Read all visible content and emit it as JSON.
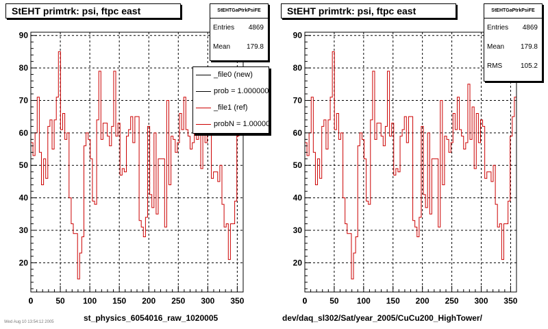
{
  "panels": [
    {
      "title": "StEHT primtrk: psi, ftpc east",
      "stats": {
        "name": "StEHTGaPtrkPsiFE",
        "rows": [
          {
            "label": "Entries",
            "value": "4869"
          },
          {
            "label": "Mean",
            "value": "179.8"
          }
        ]
      },
      "legend": [
        {
          "label": "_file0 (new)",
          "color": "#000000"
        },
        {
          "label": "prob = 1.000000",
          "color": "#000000"
        },
        {
          "label": "_file1 (ref)",
          "color": "#cc0000"
        },
        {
          "label": "probN = 1.000000",
          "color": "#cc0000"
        }
      ],
      "xcaption": "st_physics_6054016_raw_1020005",
      "footnote": "Wed Aug 10 13:54:12 2005"
    },
    {
      "title": "StEHT primtrk: psi, ftpc east",
      "stats": {
        "name": "StEHTGaPtrkPsiFE",
        "rows": [
          {
            "label": "Entries",
            "value": "4869"
          },
          {
            "label": "Mean",
            "value": "179.8"
          },
          {
            "label": "RMS",
            "value": "105.2"
          }
        ]
      },
      "legend": [],
      "xcaption": "dev/daq_sl302/Sat/year_2005/CuCu200_HighTower/",
      "footnote": ""
    }
  ],
  "chart_data": {
    "type": "line",
    "style": "step-histogram",
    "bin_width": 3.6,
    "xlim": [
      0,
      360
    ],
    "ylim": [
      11,
      91
    ],
    "xticks": [
      0,
      50,
      100,
      150,
      200,
      250,
      300,
      350
    ],
    "yticks": [
      20,
      30,
      40,
      50,
      60,
      70,
      80,
      90
    ],
    "grid": true,
    "line_color": "#cc0000",
    "x": [
      1.8,
      5.4,
      9,
      12.6,
      16.2,
      19.8,
      23.4,
      27,
      30.6,
      34.2,
      37.8,
      41.4,
      45,
      48.6,
      52.2,
      55.8,
      59.4,
      63,
      66.6,
      70.2,
      73.8,
      77.4,
      81,
      84.6,
      88.2,
      91.8,
      95.4,
      99,
      102.6,
      106.2,
      109.8,
      113.4,
      117,
      120.6,
      124.2,
      127.8,
      131.4,
      135,
      138.6,
      142.2,
      145.8,
      149.4,
      153,
      156.6,
      160.2,
      163.8,
      167.4,
      171,
      174.6,
      178.2,
      181.8,
      185.4,
      189,
      192.6,
      196.2,
      199.8,
      203.4,
      207,
      210.6,
      214.2,
      217.8,
      221.4,
      225,
      228.6,
      232.2,
      235.8,
      239.4,
      243,
      246.6,
      250.2,
      253.8,
      257.4,
      261,
      264.6,
      268.2,
      271.8,
      275.4,
      279,
      282.6,
      286.2,
      289.8,
      293.4,
      297,
      300.6,
      304.2,
      307.8,
      311.4,
      315,
      318.6,
      322.2,
      325.8,
      329.4,
      333,
      336.6,
      340.2,
      343.8,
      347.4,
      351,
      354.6,
      358.2
    ],
    "series": [
      {
        "values": [
          57,
          53,
          60,
          71,
          54,
          44,
          52,
          46,
          62,
          64,
          55,
          64,
          71,
          85,
          61,
          66,
          58,
          60,
          40,
          32,
          29,
          29,
          15,
          23,
          28,
          56,
          60,
          58,
          52,
          39,
          38,
          64,
          79,
          58,
          63,
          63,
          59,
          56,
          62,
          79,
          59,
          63,
          47,
          49,
          48,
          59,
          61,
          65,
          57,
          65,
          65,
          33,
          31,
          28,
          34,
          62,
          41,
          37,
          60,
          35,
          52,
          52,
          52,
          31,
          70,
          44,
          59,
          58,
          54,
          57,
          66,
          61,
          71,
          61,
          59,
          55,
          57,
          75,
          58,
          68,
          49,
          66,
          57,
          64,
          62,
          46,
          48,
          48,
          45,
          50,
          38,
          31,
          32,
          21,
          32,
          32,
          39,
          59,
          65,
          71
        ]
      }
    ]
  }
}
